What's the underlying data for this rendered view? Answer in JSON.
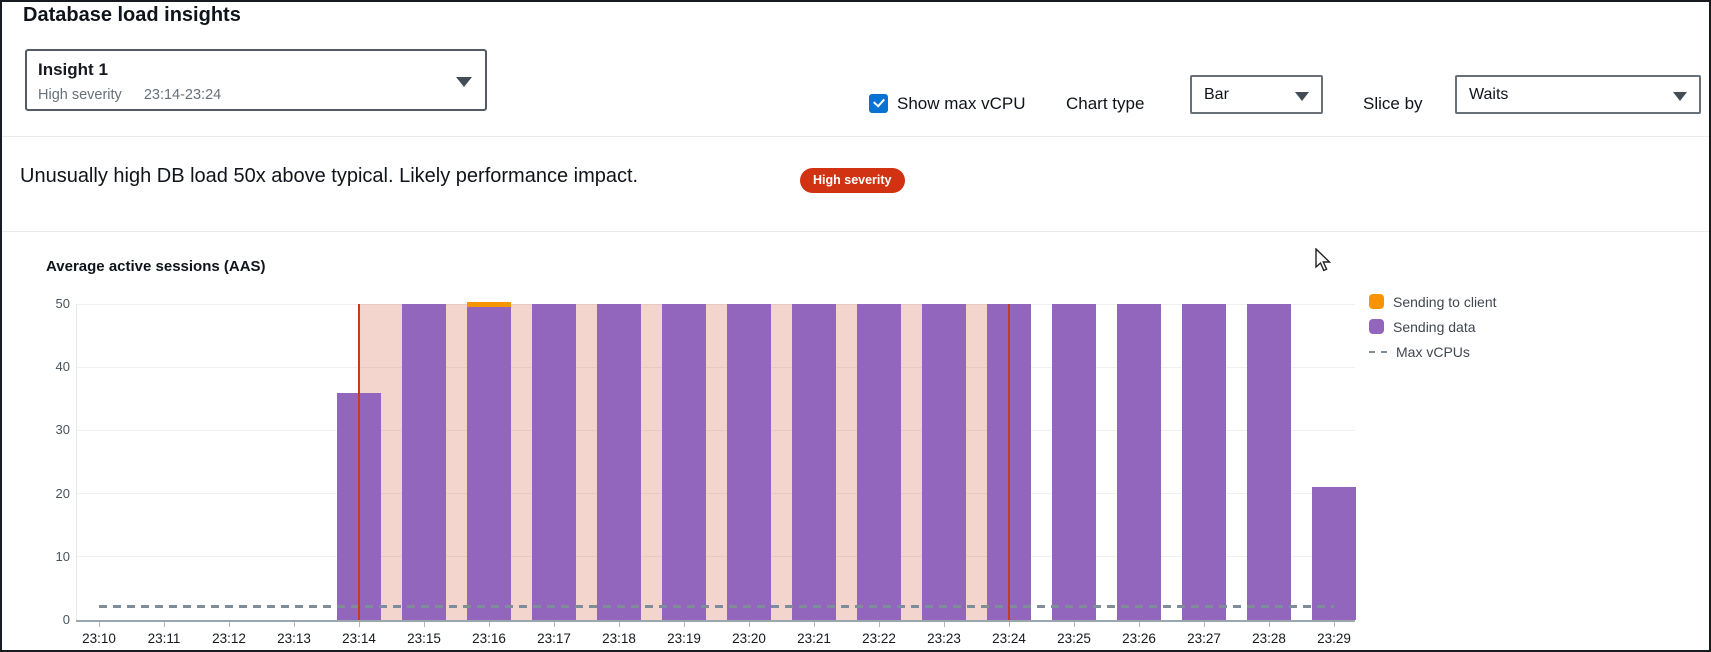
{
  "header": {
    "title": "Database load insights"
  },
  "insight_select": {
    "name": "Insight 1",
    "severity": "High severity",
    "time_range": "23:14-23:24"
  },
  "controls": {
    "show_max_vcpu_label": "Show max vCPU",
    "show_max_vcpu_checked": true,
    "chart_type_label": "Chart type",
    "chart_type_value": "Bar",
    "slice_by_label": "Slice by",
    "slice_by_value": "Waits"
  },
  "alert": {
    "message": "Unusually high DB load 50x above typical. Likely performance impact.",
    "badge": "High severity",
    "badge_color": "#d13212"
  },
  "chart_data": {
    "type": "bar",
    "title": "Average active sessions (AAS)",
    "x": [
      "23:10",
      "23:11",
      "23:12",
      "23:13",
      "23:14",
      "23:15",
      "23:16",
      "23:17",
      "23:18",
      "23:19",
      "23:20",
      "23:21",
      "23:22",
      "23:23",
      "23:24",
      "23:25",
      "23:26",
      "23:27",
      "23:28",
      "23:29"
    ],
    "series": [
      {
        "name": "Sending to client",
        "color": "#f79500",
        "values": [
          0,
          0,
          0,
          0,
          0,
          0,
          0.9,
          0,
          0,
          0,
          0,
          0,
          0,
          0,
          0,
          0,
          0,
          0,
          0,
          0
        ]
      },
      {
        "name": "Sending data",
        "color": "#9366bd",
        "values": [
          0,
          0,
          0,
          0,
          36,
          50,
          49.5,
          50,
          50,
          50,
          50,
          50,
          50,
          50,
          50,
          50,
          50,
          50,
          50,
          21
        ]
      }
    ],
    "max_vcpus": {
      "label": "Max vCPUs",
      "value": 2.2,
      "color": "#7f8c99"
    },
    "ylim": [
      0,
      50
    ],
    "yticks": [
      0,
      10,
      20,
      30,
      40,
      50
    ],
    "xlabel": "",
    "ylabel": "",
    "grid": true,
    "legend_position": "right",
    "highlight_region": {
      "from": "23:14",
      "to": "23:24",
      "fill": "rgba(199,62,29,0.22)",
      "line_color": "#c63b1f"
    }
  }
}
